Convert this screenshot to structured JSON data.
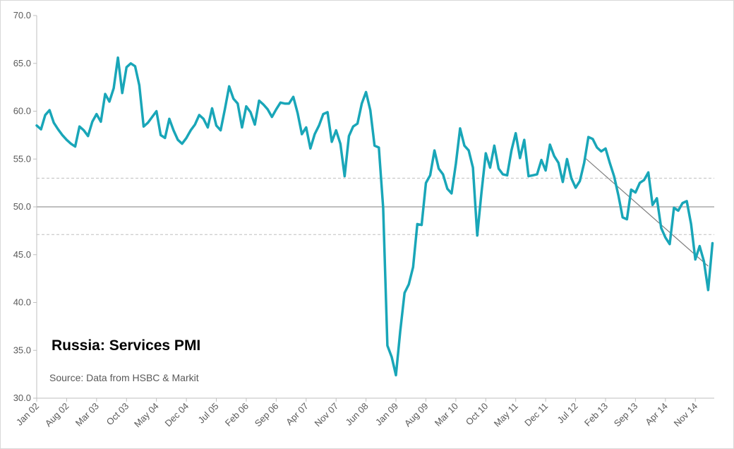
{
  "chart_data": {
    "type": "line",
    "title": "Russia: Services PMI",
    "source": "Source: Data from HSBC & Markit",
    "xlabel": "",
    "ylabel": "",
    "ylim": [
      30,
      70
    ],
    "yticks": [
      "30.0",
      "35.0",
      "40.0",
      "45.0",
      "50.0",
      "55.0",
      "60.0",
      "65.0",
      "70.0"
    ],
    "x_start": "Jan 02",
    "xticks": [
      {
        "label": "Jan 02",
        "index": 0
      },
      {
        "label": "Aug 02",
        "index": 7
      },
      {
        "label": "Mar 03",
        "index": 14
      },
      {
        "label": "Oct 03",
        "index": 21
      },
      {
        "label": "May 04",
        "index": 28
      },
      {
        "label": "Dec 04",
        "index": 35
      },
      {
        "label": "Jul 05",
        "index": 42
      },
      {
        "label": "Feb 06",
        "index": 49
      },
      {
        "label": "Sep 06",
        "index": 56
      },
      {
        "label": "Apr 07",
        "index": 63
      },
      {
        "label": "Nov 07",
        "index": 70
      },
      {
        "label": "Jun 08",
        "index": 77
      },
      {
        "label": "Jan 09",
        "index": 84
      },
      {
        "label": "Aug 09",
        "index": 91
      },
      {
        "label": "Mar 10",
        "index": 98
      },
      {
        "label": "Oct 10",
        "index": 105
      },
      {
        "label": "May 11",
        "index": 112
      },
      {
        "label": "Dec 11",
        "index": 119
      },
      {
        "label": "Jul 12",
        "index": 126
      },
      {
        "label": "Feb 13",
        "index": 133
      },
      {
        "label": "Sep 13",
        "index": 140
      },
      {
        "label": "Apr 14",
        "index": 147
      },
      {
        "label": "Nov 14",
        "index": 154
      }
    ],
    "reference_lines": [
      {
        "value": 50.0,
        "style": "solid",
        "color": "#bfbfbf"
      },
      {
        "value": 53.0,
        "style": "dashed",
        "color": "#bfbfbf"
      },
      {
        "value": 47.1,
        "style": "dashed",
        "color": "#bfbfbf"
      }
    ],
    "trendline": {
      "from": [
        128,
        55.2
      ],
      "to": [
        157,
        43.8
      ],
      "color": "#808080"
    },
    "series": [
      {
        "color": "#19a6b8",
        "values": [
          58.5,
          58.1,
          59.6,
          60.1,
          58.8,
          58.1,
          57.5,
          57.0,
          56.6,
          56.3,
          58.4,
          58.0,
          57.4,
          58.9,
          59.7,
          58.9,
          61.8,
          61.0,
          62.4,
          65.6,
          61.9,
          64.6,
          65.0,
          64.7,
          62.7,
          58.4,
          58.8,
          59.4,
          60.0,
          57.5,
          57.2,
          59.2,
          58.0,
          57.0,
          56.6,
          57.2,
          58.0,
          58.6,
          59.6,
          59.2,
          58.3,
          60.3,
          58.5,
          58.0,
          60.2,
          62.6,
          61.3,
          60.8,
          58.3,
          60.5,
          59.9,
          58.6,
          61.1,
          60.7,
          60.2,
          59.4,
          60.2,
          60.9,
          60.8,
          60.8,
          61.5,
          59.8,
          57.6,
          58.3,
          56.1,
          57.6,
          58.5,
          59.7,
          59.9,
          56.8,
          58.0,
          56.6,
          53.2,
          57.4,
          58.4,
          58.7,
          60.8,
          62.0,
          60.1,
          56.4,
          56.2,
          49.9,
          35.5,
          34.3,
          32.4,
          37.0,
          41.0,
          41.9,
          43.7,
          48.2,
          48.1,
          52.5,
          53.3,
          55.9,
          54.0,
          53.4,
          51.9,
          51.4,
          54.5,
          58.2,
          56.4,
          55.9,
          54.1,
          47.0,
          51.5,
          55.6,
          54.1,
          56.4,
          54.0,
          53.4,
          53.3,
          55.9,
          57.7,
          55.1,
          57.0,
          53.2,
          53.3,
          53.4,
          54.9,
          53.8,
          56.5,
          55.3,
          54.6,
          52.6,
          55.0,
          53.0,
          52.0,
          52.7,
          54.6,
          57.3,
          57.1,
          56.2,
          55.8,
          56.1,
          54.6,
          53.2,
          51.2,
          48.9,
          48.7,
          51.8,
          51.5,
          52.5,
          52.8,
          53.6,
          50.2,
          50.9,
          47.8,
          46.8,
          46.1,
          49.9,
          49.6,
          50.4,
          50.6,
          48.2,
          44.5,
          45.9,
          44.3,
          41.3,
          46.2
        ]
      }
    ]
  }
}
